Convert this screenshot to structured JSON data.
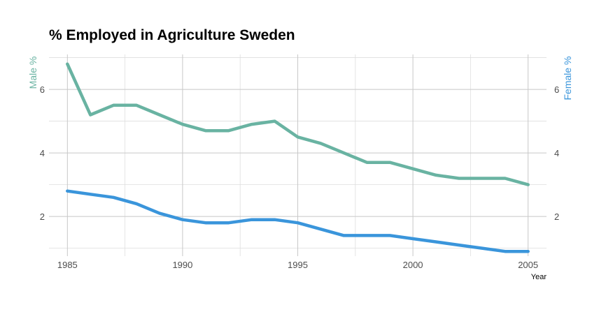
{
  "chart_data": {
    "type": "line",
    "title": "% Employed in Agriculture Sweden",
    "xlabel": "Year",
    "ylabel_left": "Male %",
    "ylabel_right": "Female %",
    "xlim": [
      1984.2,
      2005.8
    ],
    "ylim": [
      0.75,
      7.1
    ],
    "x_ticks": [
      "1985",
      "1990",
      "1995",
      "2000",
      "2005"
    ],
    "y_ticks_left": [
      "2",
      "4",
      "6"
    ],
    "y_ticks_right": [
      "2",
      "4",
      "6"
    ],
    "grid": true,
    "x": [
      1985,
      1986,
      1987,
      1988,
      1989,
      1990,
      1991,
      1992,
      1993,
      1994,
      1995,
      1996,
      1997,
      1998,
      1999,
      2000,
      2001,
      2002,
      2003,
      2004,
      2005
    ],
    "series": [
      {
        "name": "Male %",
        "color": "#69b3a2",
        "values": [
          6.8,
          5.2,
          5.5,
          5.5,
          5.2,
          4.9,
          4.7,
          4.7,
          4.9,
          5.0,
          4.5,
          4.3,
          4.0,
          3.7,
          3.7,
          3.5,
          3.3,
          3.2,
          3.2,
          3.2,
          3.0
        ]
      },
      {
        "name": "Female %",
        "color": "#3a95db",
        "values": [
          2.8,
          2.7,
          2.6,
          2.4,
          2.1,
          1.9,
          1.8,
          1.8,
          1.9,
          1.9,
          1.8,
          1.6,
          1.4,
          1.4,
          1.4,
          1.3,
          1.2,
          1.1,
          1.0,
          0.9,
          0.9
        ]
      }
    ],
    "axis_title_colors": {
      "left": "#69b3a2",
      "right": "#3a95db"
    }
  }
}
